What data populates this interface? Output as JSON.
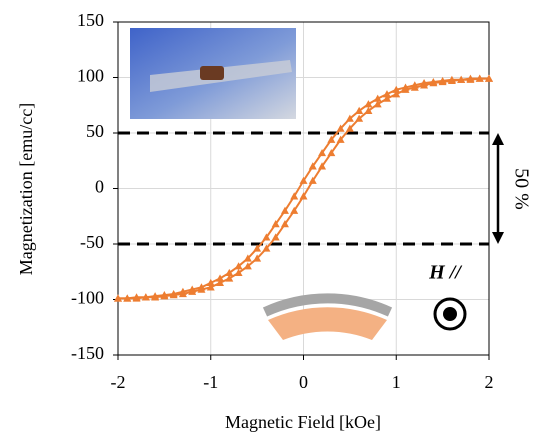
{
  "chart_data": {
    "type": "line",
    "xlabel": "Magnetic Field [kOe]",
    "ylabel": "Magnetization [emu/cc]",
    "x": [
      -2,
      -1.9,
      -1.8,
      -1.7,
      -1.6,
      -1.5,
      -1.4,
      -1.3,
      -1.2,
      -1.1,
      -1,
      -0.9,
      -0.8,
      -0.7,
      -0.6,
      -0.5,
      -0.4,
      -0.3,
      -0.2,
      -0.1,
      0,
      0.1,
      0.2,
      0.3,
      0.4,
      0.5,
      0.6,
      0.7,
      0.8,
      0.9,
      1,
      1.1,
      1.2,
      1.3,
      1.4,
      1.5,
      1.6,
      1.7,
      1.8,
      1.9,
      2
    ],
    "series": [
      {
        "color": "#ED7D31",
        "values": [
          -99,
          -99,
          -98,
          -98,
          -97,
          -96,
          -95,
          -93,
          -91,
          -89,
          -85,
          -81,
          -76,
          -70,
          -63,
          -54,
          -44,
          -32,
          -20,
          -7,
          7,
          20,
          32,
          44,
          54,
          63,
          70,
          76,
          81,
          85,
          89,
          91,
          93,
          95,
          96,
          97,
          98,
          98,
          99,
          99,
          99
        ]
      },
      {
        "color": "#ED7D31",
        "values": [
          -99,
          -99,
          -99,
          -98,
          -98,
          -97,
          -96,
          -95,
          -93,
          -91,
          -89,
          -85,
          -81,
          -76,
          -70,
          -63,
          -54,
          -44,
          -32,
          -20,
          -7,
          7,
          20,
          32,
          44,
          54,
          63,
          70,
          76,
          81,
          85,
          89,
          91,
          93,
          95,
          96,
          97,
          98,
          98,
          99,
          99
        ]
      }
    ],
    "xlim": [
      -2,
      2
    ],
    "xticks": [
      -2,
      -1,
      0,
      1,
      2
    ],
    "ylim": [
      -150,
      150
    ],
    "yticks": [
      -150,
      -100,
      -50,
      0,
      50,
      100,
      150
    ],
    "grid": true,
    "reference_lines": [
      50,
      -50
    ],
    "annotations": [
      "50 %",
      "H //"
    ]
  }
}
